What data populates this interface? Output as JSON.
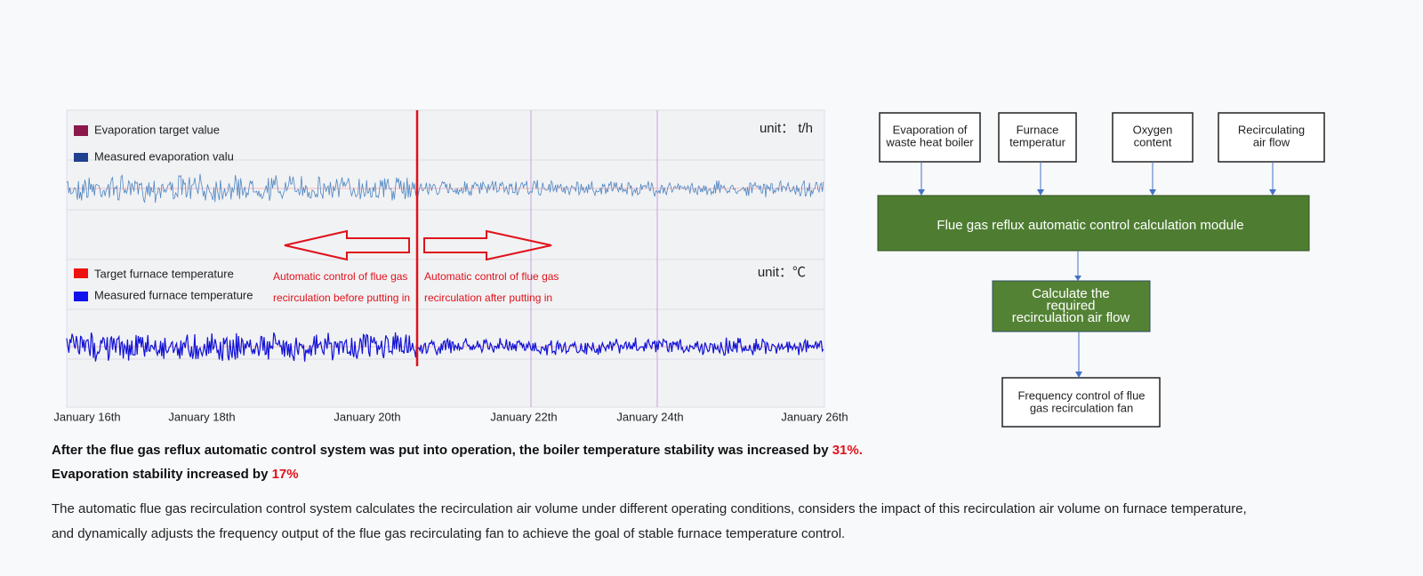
{
  "chart_panel": {
    "legend_top": [
      "Evaporation target value",
      "Measured evaporation valu"
    ],
    "unit_top": "unit： t/h",
    "legend_bottom": [
      "Target furnace temperature",
      "Measured furnace temperature"
    ],
    "unit_bottom": "unit：℃",
    "annotation_left": [
      "Automatic control of flue gas",
      "recirculation before putting in"
    ],
    "annotation_right": [
      "Automatic control of flue gas",
      "recirculation after putting in"
    ],
    "x_labels": [
      "January 16th",
      "January 18th",
      "January 20th",
      "January 22th",
      "January 24th",
      "January 26th"
    ]
  },
  "diagram": {
    "inputs": [
      [
        "Evaporation of",
        "waste heat boiler"
      ],
      [
        "Furnace",
        "temperatur"
      ],
      [
        "Oxygen",
        "content"
      ],
      [
        "Recirculating",
        "air flow"
      ]
    ],
    "module": "Flue gas reflux automatic control calculation module",
    "calc": [
      "Calculate the",
      "required",
      "recirculation air flow"
    ],
    "output": [
      "Frequency control of flue",
      "gas recirculation fan"
    ]
  },
  "summary": {
    "line1_text": "After the flue gas reflux automatic control system was put into operation, the boiler temperature stability was increased by",
    "line1_value": "31%.",
    "line2_text": "Evaporation stability increased by",
    "line2_value": "17%",
    "paragraph": "The automatic flue gas recirculation control system calculates the recirculation air volume under different operating conditions, considers the impact of this recirculation air volume on furnace temperature, and dynamically adjusts the frequency output of the flue gas recirculating fan to achieve the goal of stable furnace temperature control."
  }
}
